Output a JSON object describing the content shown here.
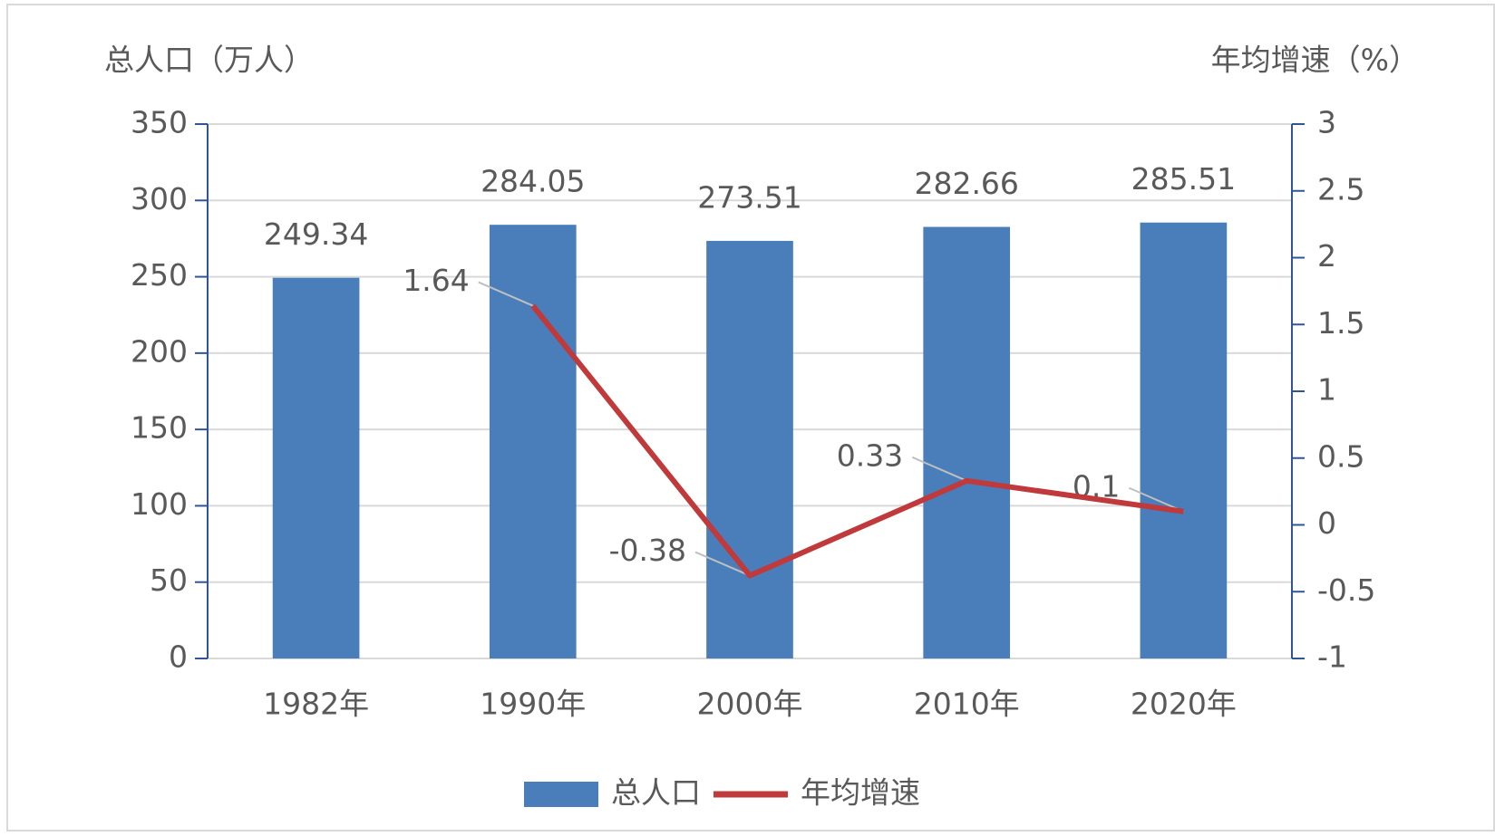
{
  "chart_data": {
    "type": "bar",
    "y_label": "总人口（万人）",
    "y2_label": "年均增速（%）",
    "categories": [
      "1982年",
      "1990年",
      "2000年",
      "2010年",
      "2020年"
    ],
    "series": [
      {
        "name": "总人口",
        "type": "bar",
        "color": "#4a7ebb",
        "values": [
          249.34,
          284.05,
          273.51,
          282.66,
          285.51
        ]
      },
      {
        "name": "年均增速",
        "type": "line",
        "axis": "y2",
        "color": "#c0393b",
        "values": [
          null,
          1.64,
          -0.38,
          0.33,
          0.1
        ]
      }
    ],
    "ylim": [
      0,
      350
    ],
    "yticks": [
      0,
      50,
      100,
      150,
      200,
      250,
      300,
      350
    ],
    "y2lim": [
      -1,
      3
    ],
    "y2ticks": [
      -1,
      -0.5,
      0,
      0.5,
      1,
      1.5,
      2,
      2.5,
      3
    ],
    "grid": true,
    "legend": "bottom"
  }
}
